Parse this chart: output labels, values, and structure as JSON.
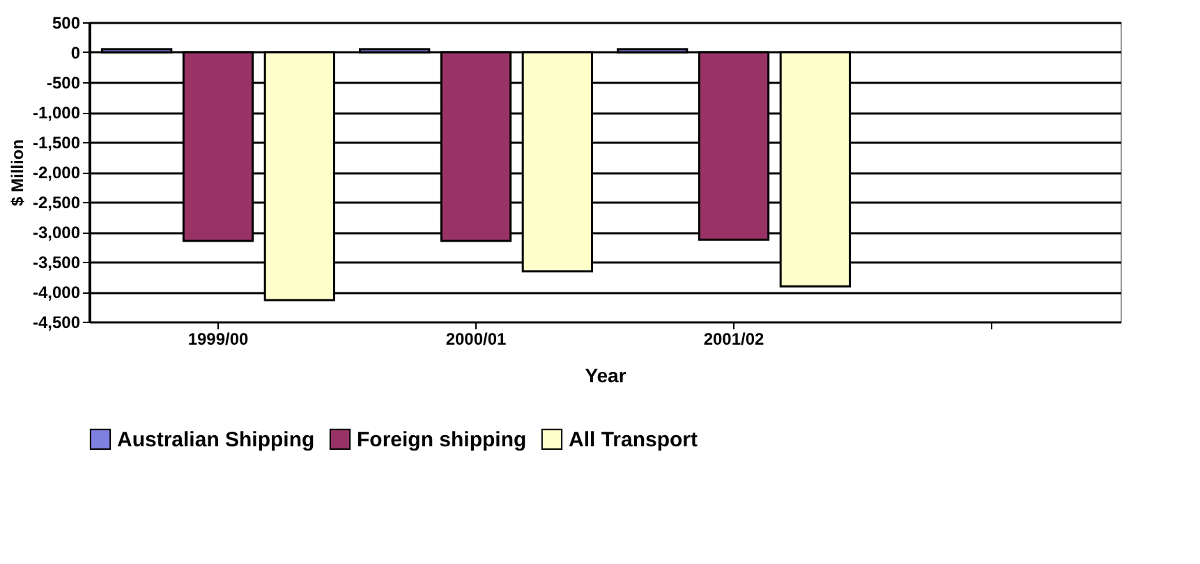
{
  "chart_data": {
    "type": "bar",
    "xlabel": "Year",
    "ylabel": "$ Million",
    "categories": [
      "1999/00",
      "2000/01",
      "2001/02",
      null
    ],
    "series": [
      {
        "name": "Australian Shipping",
        "color": "#8080e0",
        "values": [
          50,
          50,
          50,
          null
        ]
      },
      {
        "name": "Foreign shipping",
        "color": "#993366",
        "values": [
          -3150,
          -3150,
          -3130,
          null
        ]
      },
      {
        "name": "All Transport",
        "color": "#ffffcc",
        "values": [
          -4140,
          -3660,
          -3910,
          null
        ]
      }
    ],
    "ylim": [
      -4500,
      500
    ],
    "yticks": [
      {
        "value": 500,
        "label": "500"
      },
      {
        "value": 0,
        "label": "0"
      },
      {
        "value": -500,
        "label": "-500"
      },
      {
        "value": -1000,
        "label": "-1,000"
      },
      {
        "value": -1500,
        "label": "-1,500"
      },
      {
        "value": -2000,
        "label": "-2,000"
      },
      {
        "value": -2500,
        "label": "-2,500"
      },
      {
        "value": -3000,
        "label": "-3,000"
      },
      {
        "value": -3500,
        "label": "-3,500"
      },
      {
        "value": -4000,
        "label": "-4,000"
      },
      {
        "value": -4500,
        "label": "-4,500"
      }
    ],
    "grid": "y",
    "legend": "bottom"
  }
}
